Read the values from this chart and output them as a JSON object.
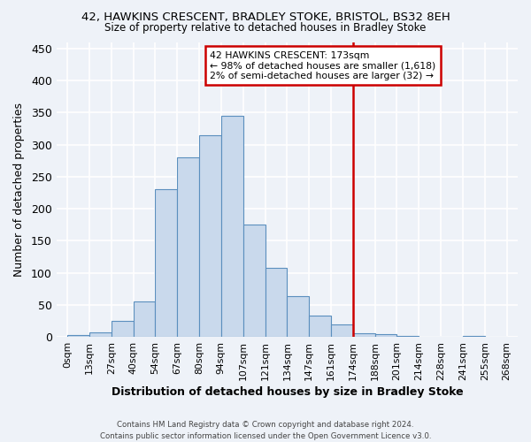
{
  "title1": "42, HAWKINS CRESCENT, BRADLEY STOKE, BRISTOL, BS32 8EH",
  "title2": "Size of property relative to detached houses in Bradley Stoke",
  "xlabel": "Distribution of detached houses by size in Bradley Stoke",
  "ylabel": "Number of detached properties",
  "bar_labels": [
    "0sqm",
    "13sqm",
    "27sqm",
    "40sqm",
    "54sqm",
    "67sqm",
    "80sqm",
    "94sqm",
    "107sqm",
    "121sqm",
    "134sqm",
    "147sqm",
    "161sqm",
    "174sqm",
    "188sqm",
    "201sqm",
    "214sqm",
    "228sqm",
    "241sqm",
    "255sqm",
    "268sqm"
  ],
  "bar_heights": [
    3,
    7,
    25,
    55,
    230,
    280,
    315,
    345,
    175,
    108,
    63,
    33,
    20,
    6,
    4,
    1,
    0,
    0,
    1,
    0
  ],
  "bar_color": "#c9d9ec",
  "bar_edge_color": "#5b8fbe",
  "vline_index": 13,
  "vline_color": "#cc0000",
  "annotation_text": "42 HAWKINS CRESCENT: 173sqm\n← 98% of detached houses are smaller (1,618)\n2% of semi-detached houses are larger (32) →",
  "annotation_box_color": "#ffffff",
  "annotation_edge_color": "#cc0000",
  "footer": "Contains HM Land Registry data © Crown copyright and database right 2024.\nContains public sector information licensed under the Open Government Licence v3.0.",
  "ylim": [
    0,
    460
  ],
  "background_color": "#eef2f8",
  "grid_color": "#ffffff"
}
